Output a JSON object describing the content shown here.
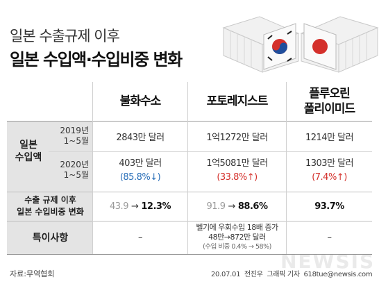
{
  "title": {
    "line1": "일본 수출규제 이후",
    "line2": "일본 수입액·수입비중 변화"
  },
  "columns": [
    "불화수소",
    "포토레지스트",
    "플루오린\n폴리이미드"
  ],
  "rows": {
    "import_label": "일본\n수입액",
    "y2019_label": "2019년\n1~5월",
    "y2020_label": "2020년\n1~5월",
    "y2019": [
      "2843만 달러",
      "1억1272만 달러",
      "1214만 달러"
    ],
    "y2020": [
      "403만 달러",
      "1억5081만 달러",
      "1303만 달러"
    ],
    "change": [
      "(85.8%↓)",
      "(33.8%↑)",
      "(7.4%↑)"
    ],
    "share_label": "수출 규제 이후\n일본 수입비중 변화",
    "share_before": [
      "43.9",
      "91.9",
      ""
    ],
    "share_after": [
      "12.3%",
      "88.6%",
      "93.7%"
    ],
    "arrow": "→",
    "notes_label": "특이사항",
    "notes": [
      "–",
      "벨기에 우회수입 18배 증가\n48만→872만 달러",
      "–"
    ],
    "notes_sub": "(수입 비중 0.4% → 58%)"
  },
  "footer": {
    "source": "자료:무역협회",
    "credit": "20.07.01  전진우  그래픽 기자  618tue@newsis.com"
  },
  "watermark": "NEWSIS",
  "colors": {
    "decrease": "#2a6fb8",
    "increase": "#d4302b",
    "grid": "#e4e4e4"
  }
}
